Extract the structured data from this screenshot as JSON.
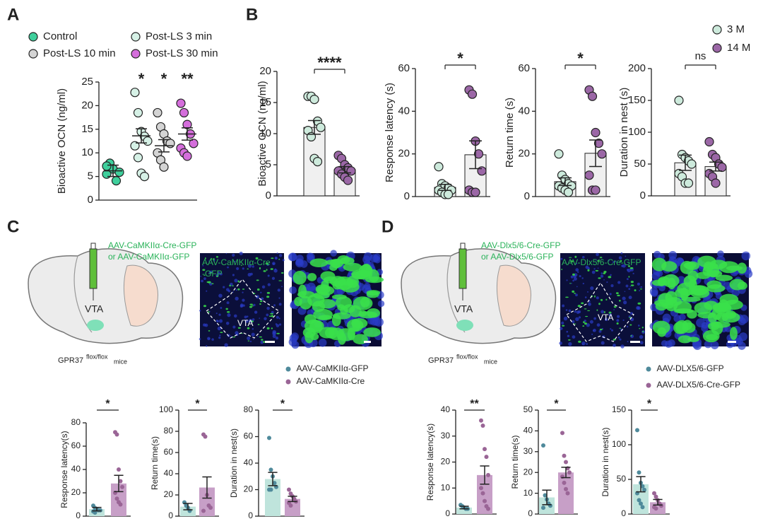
{
  "chart_data": [
    {
      "type": "dotplot",
      "ylabel": "Bioactive OCN (ng/ml)",
      "ylim": [
        0,
        25
      ],
      "yticks": [
        0,
        5,
        10,
        15,
        20,
        25
      ],
      "series": [
        {
          "name": "Control",
          "color": "#3fcf9c",
          "values": [
            5.5,
            7.8,
            6.6,
            4.1,
            5.9,
            7.2
          ],
          "mean": 6.2,
          "sem": 1.2
        },
        {
          "name": "Post-LS 3 min",
          "color": "#d6f1e6",
          "values": [
            22.8,
            18.5,
            14.5,
            13.5,
            12.5,
            11.5,
            9,
            5.7,
            5
          ],
          "mean": 13.6,
          "sem": 1.5,
          "significance": "*"
        },
        {
          "name": "Post-LS 10 min",
          "color": "#d4d4d4",
          "values": [
            18.5,
            15.5,
            14,
            12.5,
            12,
            10,
            8.5,
            7
          ],
          "mean": 11.5,
          "sem": 1.3,
          "significance": "*"
        },
        {
          "name": "Post-LS 30 min",
          "color": "#d46edb",
          "values": [
            20.5,
            18.5,
            16,
            14,
            12,
            11,
            10,
            9.3
          ],
          "mean": 14,
          "sem": 1.3,
          "significance": "**"
        }
      ]
    },
    {
      "type": "bar",
      "ylabel": "Bioactive OCN (ng/ml)",
      "ylim": [
        0,
        20
      ],
      "yticks": [
        0,
        5,
        10,
        15,
        20
      ],
      "significance": "****",
      "series": [
        {
          "name": "3 M",
          "color": "#cdeadc",
          "bar_color": "#f0f0f0",
          "values": [
            16,
            16,
            15.5,
            12,
            11,
            10.5,
            9.5,
            6,
            5.5
          ],
          "mean": 11,
          "sem": 1.1
        },
        {
          "name": "14 M",
          "color": "#9b67a6",
          "bar_color": "#f0f0f0",
          "values": [
            6.5,
            6,
            5,
            4.5,
            4,
            4,
            3.5,
            3,
            2.5
          ],
          "mean": 4.2,
          "sem": 0.5
        }
      ]
    },
    {
      "type": "bar",
      "ylabel": "Response latency (s)",
      "ylim": [
        0,
        60
      ],
      "yticks": [
        0,
        20,
        40,
        60
      ],
      "significance": "*",
      "series": [
        {
          "color": "#cdeadc",
          "bar_color": "#f0f0f0",
          "values": [
            14,
            6,
            5,
            4,
            3,
            3,
            2,
            1,
            1
          ],
          "mean": 4.3,
          "sem": 1.4
        },
        {
          "color": "#9b67a6",
          "bar_color": "#f0f0f0",
          "values": [
            50,
            48,
            26,
            20,
            12,
            3,
            2,
            2
          ],
          "mean": 19.6,
          "sem": 6.5
        }
      ]
    },
    {
      "type": "bar",
      "ylabel": "Return time (s)",
      "ylim": [
        0,
        60
      ],
      "yticks": [
        0,
        20,
        40,
        60
      ],
      "significance": "*",
      "series": [
        {
          "color": "#cdeadc",
          "bar_color": "#f0f0f0",
          "values": [
            20,
            10,
            8,
            6,
            5,
            5,
            4,
            3,
            2
          ],
          "mean": 7,
          "sem": 1.8
        },
        {
          "color": "#9b67a6",
          "bar_color": "#f0f0f0",
          "values": [
            50,
            47,
            30,
            25,
            20,
            10,
            3,
            3
          ],
          "mean": 20.3,
          "sem": 6.2
        }
      ]
    },
    {
      "type": "bar",
      "ylabel": "Duration in nest (s)",
      "ylim": [
        0,
        200
      ],
      "yticks": [
        0,
        50,
        100,
        150,
        200
      ],
      "significance": "ns",
      "series": [
        {
          "color": "#cdeadc",
          "bar_color": "#f0f0f0",
          "values": [
            150,
            65,
            60,
            55,
            50,
            35,
            30,
            20,
            20
          ],
          "mean": 52,
          "sem": 12
        },
        {
          "color": "#9b67a6",
          "bar_color": "#f0f0f0",
          "values": [
            85,
            65,
            60,
            50,
            45,
            35,
            30,
            20
          ],
          "mean": 46,
          "sem": 7
        }
      ]
    },
    {
      "type": "bar",
      "ylabel": "Response latency(s)",
      "ylim": [
        0,
        80
      ],
      "yticks": [
        0,
        20,
        40,
        60,
        80
      ],
      "significance": "*",
      "series": [
        {
          "name": "AAV-CaMKIIα-GFP",
          "color": "#4f8a9b",
          "bar_color": "#bfe4dc",
          "values": [
            9,
            7,
            6,
            5,
            5,
            4,
            3
          ],
          "mean": 6,
          "sem": 1.5
        },
        {
          "name": "AAV-CaMKIIα-Cre",
          "color": "#9a6596",
          "bar_color": "#c79fc7",
          "values": [
            72,
            70,
            40,
            30,
            25,
            20,
            15,
            12,
            10
          ],
          "mean": 28,
          "sem": 7
        }
      ]
    },
    {
      "type": "bar",
      "ylabel": "Return time(s)",
      "ylim": [
        0,
        100
      ],
      "yticks": [
        0,
        20,
        40,
        60,
        80,
        100
      ],
      "significance": "*",
      "series": [
        {
          "color": "#4f8a9b",
          "bar_color": "#bfe4dc",
          "values": [
            13,
            10,
            8,
            5
          ],
          "mean": 9,
          "sem": 3
        },
        {
          "color": "#9a6596",
          "bar_color": "#c79fc7",
          "values": [
            77,
            75,
            20,
            10,
            8,
            5
          ],
          "mean": 27,
          "sem": 10
        }
      ]
    },
    {
      "type": "bar",
      "ylabel": "Duration in nest(s)",
      "ylim": [
        0,
        80
      ],
      "yticks": [
        0,
        20,
        40,
        60,
        80
      ],
      "significance": "*",
      "series": [
        {
          "color": "#4f8a9b",
          "bar_color": "#bfe4dc",
          "values": [
            59,
            35,
            30,
            25,
            22,
            20,
            20
          ],
          "mean": 28,
          "sem": 5
        },
        {
          "color": "#9a6596",
          "bar_color": "#c79fc7",
          "values": [
            20,
            17,
            15,
            13,
            11,
            10,
            8
          ],
          "mean": 13,
          "sem": 2
        }
      ]
    },
    {
      "type": "bar",
      "ylabel": "Response latency(s)",
      "ylim": [
        0,
        40
      ],
      "yticks": [
        0,
        10,
        20,
        30,
        40
      ],
      "significance": "**",
      "series": [
        {
          "name": "AAV-DLX5/6-GFP",
          "color": "#4f8a9b",
          "bar_color": "#bfe4dc",
          "values": [
            3.5,
            3,
            2.5,
            2,
            2
          ],
          "mean": 2.5,
          "sem": 0.5
        },
        {
          "name": "AAV-DLX5/6-Cre-GFP",
          "color": "#9a6596",
          "bar_color": "#c79fc7",
          "values": [
            36,
            34,
            25,
            22,
            15,
            10,
            8,
            5,
            3,
            2
          ],
          "mean": 15,
          "sem": 3.5
        }
      ]
    },
    {
      "type": "bar",
      "ylabel": "Return time(s)",
      "ylim": [
        0,
        50
      ],
      "yticks": [
        0,
        10,
        20,
        30,
        40,
        50
      ],
      "significance": "*",
      "series": [
        {
          "color": "#4f8a9b",
          "bar_color": "#bfe4dc",
          "values": [
            33,
            9,
            7,
            5,
            4,
            3
          ],
          "mean": 8,
          "sem": 3.5
        },
        {
          "color": "#9a6596",
          "bar_color": "#c79fc7",
          "values": [
            39,
            28,
            25,
            22,
            20,
            18,
            15,
            12,
            10
          ],
          "mean": 20,
          "sem": 2.5
        }
      ]
    },
    {
      "type": "bar",
      "ylabel": "Duration in nest(s)",
      "ylim": [
        0,
        150
      ],
      "yticks": [
        0,
        50,
        100,
        150
      ],
      "significance": "*",
      "series": [
        {
          "color": "#4f8a9b",
          "bar_color": "#bfe4dc",
          "values": [
            121,
            60,
            45,
            40,
            35,
            30,
            20,
            15,
            10
          ],
          "mean": 43,
          "sem": 11
        },
        {
          "color": "#9a6596",
          "bar_color": "#c79fc7",
          "values": [
            30,
            25,
            20,
            15,
            12,
            10,
            8
          ],
          "mean": 17,
          "sem": 4
        }
      ]
    }
  ],
  "panels": {
    "A": {
      "letter": "A"
    },
    "B": {
      "letter": "B"
    },
    "C": {
      "letter": "C",
      "virus_line1": "AAV-CaMKIIα-Cre-GFP",
      "virus_line2": "or AAV-CaMKIIα-GFP",
      "region": "VTA",
      "mouse": "GPR37",
      "genotype": "flox/flox",
      "mice": "mice",
      "image_label_line1": "AAV-CaMKIIα-Cre",
      "image_label_line2": "-GFP",
      "image_region": "VTA"
    },
    "D": {
      "letter": "D",
      "virus_line1": "AAV-Dlx5/6-Cre-GFP",
      "virus_line2": "or AAV-Dlx5/6-GFP",
      "region": "VTA",
      "mouse": "GPR37",
      "genotype": "flox/flox",
      "mice": "mice",
      "image_label_line1": "AAV-Dlx5/6-Cre-GFP",
      "image_region": "VTA"
    }
  }
}
